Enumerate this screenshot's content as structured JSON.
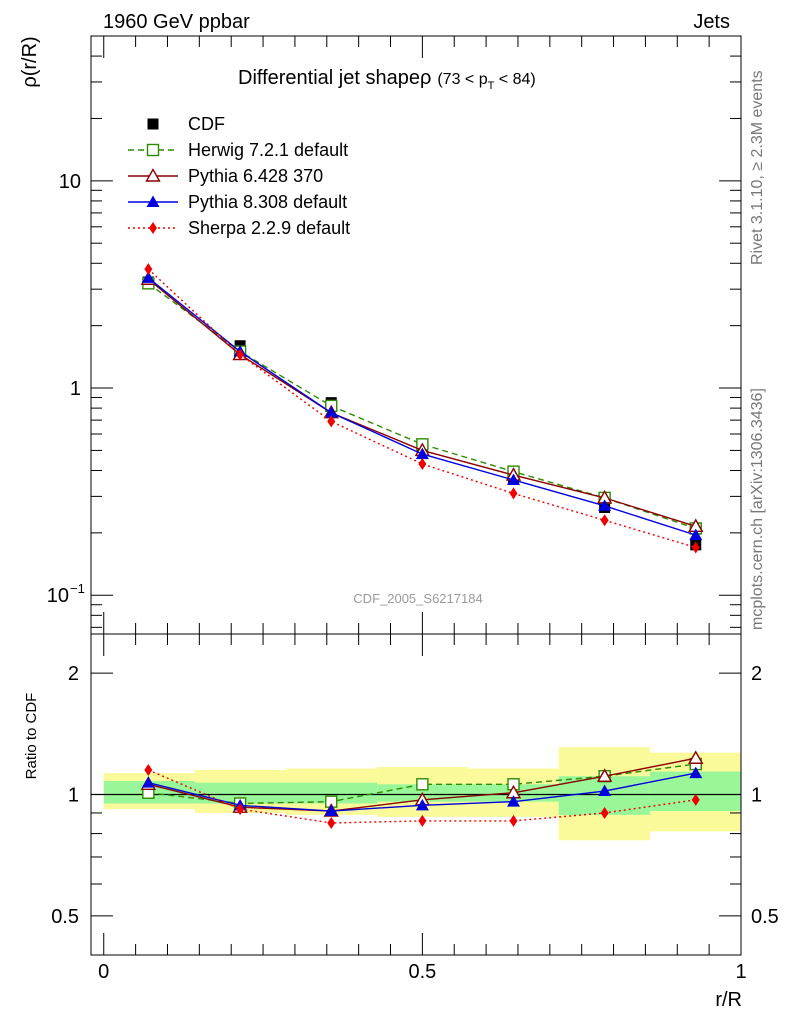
{
  "header": {
    "left": "1960 GeV ppbar",
    "right": "Jets"
  },
  "side_labels": {
    "rivet": "Rivet 3.1.10, ≥ 2.3M events",
    "mcplots": "mcplots.cern.ch [arXiv:1306.3436]"
  },
  "colors": {
    "cdf": "#000000",
    "herwig": "#2e8b00",
    "pythia6": "#8b0000",
    "pythia8": "#0000dd",
    "sherpa": "#ee0000",
    "band_inner": "#99f799",
    "band_outer": "#fafa9a"
  },
  "chart_data": [
    {
      "type": "line",
      "title": "Differential jet shapeρ",
      "title_suffix": "(73 < p",
      "title_sub": "T",
      "title_end": " < 84)",
      "ylabel": "ρ(r/R)",
      "yscale": "log",
      "ylim": [
        0.065,
        50
      ],
      "xlim": [
        -0.02,
        1.0
      ],
      "ytick_labels": [
        "10",
        "1",
        "10"
      ],
      "ytick_exp": "−1",
      "watermark": "CDF_2005_S6217184",
      "legend_position": "top-left",
      "x": [
        0.07,
        0.214,
        0.357,
        0.5,
        0.643,
        0.786,
        0.929
      ],
      "series": [
        {
          "name": "CDF",
          "values": [
            3.25,
            1.6,
            0.85,
            0.52,
            0.37,
            0.265,
            0.175
          ]
        },
        {
          "name": "Herwig 7.2.1 default",
          "values": [
            3.2,
            1.5,
            0.82,
            0.535,
            0.395,
            0.295,
            0.21
          ]
        },
        {
          "name": "Pythia 6.428 370",
          "values": [
            3.35,
            1.45,
            0.76,
            0.5,
            0.38,
            0.295,
            0.215
          ]
        },
        {
          "name": "Pythia 8.308 default",
          "values": [
            3.4,
            1.5,
            0.76,
            0.48,
            0.36,
            0.27,
            0.195
          ]
        },
        {
          "name": "Sherpa 2.2.9 default",
          "values": [
            3.75,
            1.45,
            0.69,
            0.43,
            0.31,
            0.23,
            0.17
          ]
        }
      ]
    },
    {
      "type": "line",
      "ylabel": "Ratio to CDF",
      "xlabel": "r/R",
      "yscale": "log",
      "ylim": [
        0.4,
        2.5
      ],
      "xlim": [
        -0.02,
        1.0
      ],
      "ytick_labels": [
        "2",
        "1",
        "0.5"
      ],
      "xtick_labels": [
        "0",
        "0.5",
        "1"
      ],
      "x": [
        0.07,
        0.214,
        0.357,
        0.5,
        0.643,
        0.786,
        0.929
      ],
      "bin_edges": [
        0.0,
        0.143,
        0.286,
        0.429,
        0.571,
        0.714,
        0.857,
        1.0
      ],
      "band_inner": [
        [
          0.95,
          1.08
        ],
        [
          0.95,
          1.07
        ],
        [
          0.95,
          1.07
        ],
        [
          0.96,
          1.06
        ],
        [
          0.96,
          1.06
        ],
        [
          0.89,
          1.11
        ],
        [
          0.91,
          1.14
        ]
      ],
      "band_outer": [
        [
          0.92,
          1.13
        ],
        [
          0.9,
          1.15
        ],
        [
          0.89,
          1.16
        ],
        [
          0.88,
          1.17
        ],
        [
          0.88,
          1.16
        ],
        [
          0.77,
          1.31
        ],
        [
          0.81,
          1.27
        ]
      ],
      "series": [
        {
          "name": "Herwig 7.2.1 default",
          "values": [
            1.01,
            0.95,
            0.96,
            1.06,
            1.06,
            1.11,
            1.19
          ]
        },
        {
          "name": "Pythia 6.428 370",
          "values": [
            1.06,
            0.93,
            0.91,
            0.97,
            1.01,
            1.11,
            1.23
          ]
        },
        {
          "name": "Pythia 8.308 default",
          "values": [
            1.07,
            0.94,
            0.91,
            0.94,
            0.96,
            1.02,
            1.13
          ]
        },
        {
          "name": "Sherpa 2.2.9 default",
          "values": [
            1.15,
            0.92,
            0.85,
            0.86,
            0.86,
            0.9,
            0.97
          ]
        }
      ]
    }
  ]
}
